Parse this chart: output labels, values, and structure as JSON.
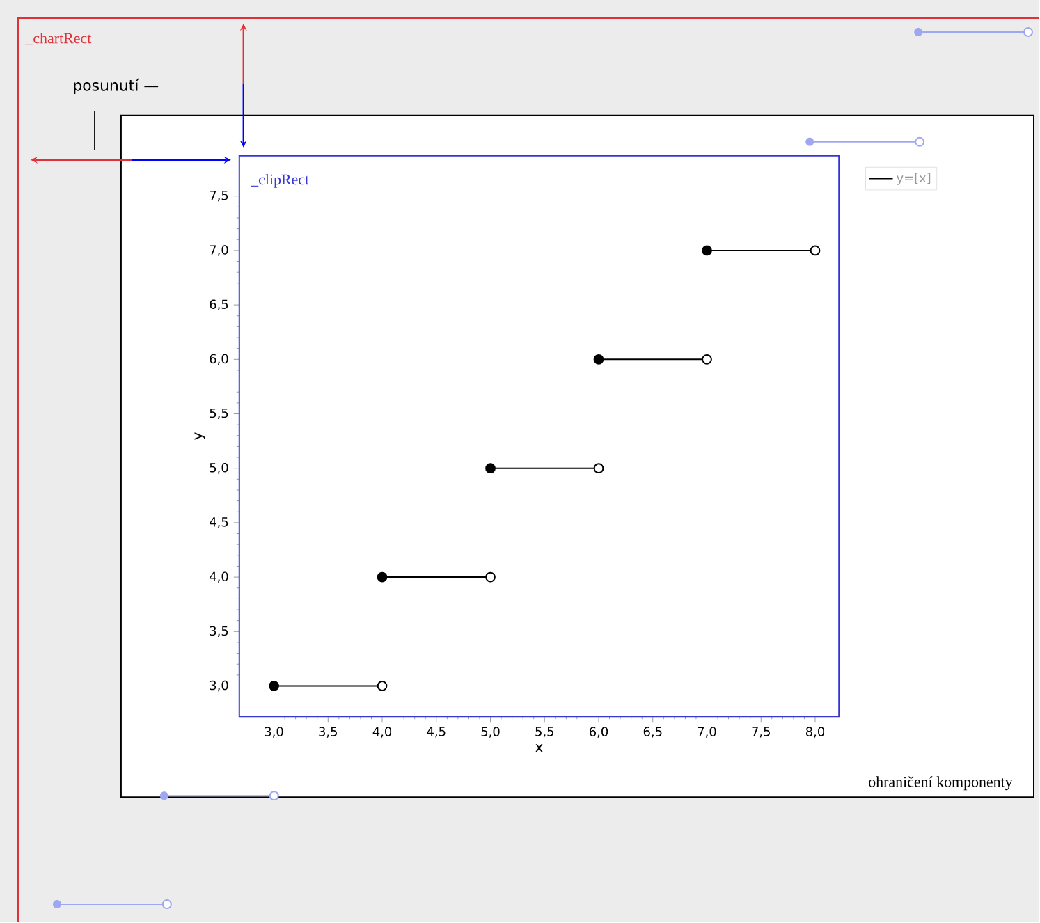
{
  "chart_data": {
    "type": "line",
    "xlabel": "x",
    "ylabel": "y",
    "annotations": [
      "_chartRect",
      "posunutí —",
      "_clipRect",
      "ohraničení komponenty"
    ],
    "xlim": [
      2.68,
      8.22
    ],
    "ylim": [
      2.72,
      7.87
    ],
    "xticks": [
      {
        "value": 3,
        "label": "3,0"
      },
      {
        "value": 3.5,
        "label": "3,5"
      },
      {
        "value": 4,
        "label": "4,0"
      },
      {
        "value": 4.5,
        "label": "4,5"
      },
      {
        "value": 5,
        "label": "5,0"
      },
      {
        "value": 5.5,
        "label": "5,5"
      },
      {
        "value": 6,
        "label": "6,0"
      },
      {
        "value": 6.5,
        "label": "6,5"
      },
      {
        "value": 7,
        "label": "7,0"
      },
      {
        "value": 7.5,
        "label": "7,5"
      },
      {
        "value": 8,
        "label": "8,0"
      }
    ],
    "yticks": [
      {
        "value": 3,
        "label": "3,0"
      },
      {
        "value": 3.5,
        "label": "3,5"
      },
      {
        "value": 4,
        "label": "4,0"
      },
      {
        "value": 4.5,
        "label": "4,5"
      },
      {
        "value": 5,
        "label": "5,0"
      },
      {
        "value": 5.5,
        "label": "5,5"
      },
      {
        "value": 6,
        "label": "6,0"
      },
      {
        "value": 6.5,
        "label": "6,5"
      },
      {
        "value": 7,
        "label": "7,0"
      },
      {
        "value": 7.5,
        "label": "7,5"
      }
    ],
    "grid": false,
    "legend": "top right",
    "series": [
      {
        "name": "y=[x]",
        "color": "#000000",
        "marker": "none",
        "line_style": "solid",
        "x": [
          3,
          4
        ],
        "values": [
          3,
          3
        ]
      },
      {
        "color": "#000000",
        "marker": "none",
        "line_style": "solid",
        "x": [
          4,
          5
        ],
        "values": [
          4,
          4
        ]
      },
      {
        "color": "#000000",
        "marker": "none",
        "line_style": "solid",
        "x": [
          5,
          6
        ],
        "values": [
          5,
          5
        ]
      },
      {
        "color": "#000000",
        "marker": "none",
        "line_style": "solid",
        "x": [
          6,
          7
        ],
        "values": [
          6,
          6
        ]
      },
      {
        "color": "#000000",
        "marker": "none",
        "line_style": "solid",
        "x": [
          7,
          8
        ],
        "values": [
          7,
          7
        ]
      },
      {
        "type": "scatter",
        "color": "#000000",
        "marker": "circle",
        "x": [
          3,
          4,
          5,
          6,
          7
        ],
        "values": [
          3,
          4,
          5,
          6,
          7
        ]
      },
      {
        "type": "scatter",
        "color": "#ffffff",
        "marker": "circle",
        "x": [
          4,
          5,
          6,
          7,
          8
        ],
        "values": [
          3,
          4,
          5,
          6,
          7
        ]
      }
    ]
  }
}
